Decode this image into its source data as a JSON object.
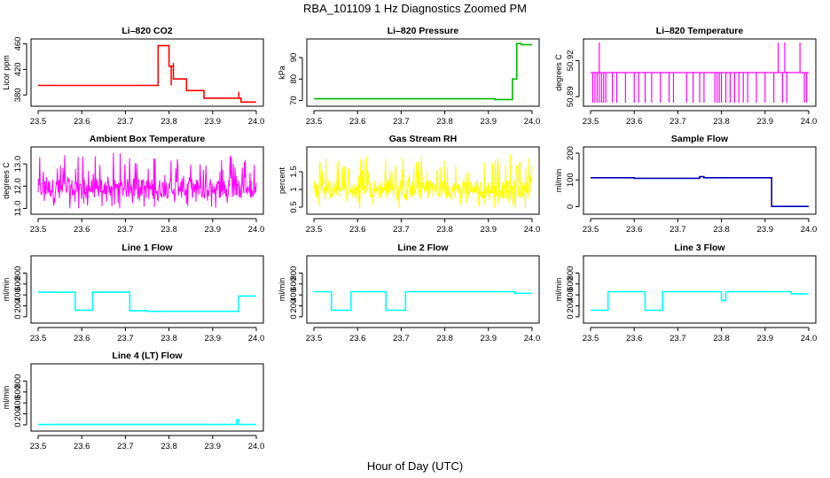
{
  "figure": {
    "title": "RBA_101109  1 Hz Diagnostics Zoomed PM",
    "xlabel": "Hour of Day (UTC)"
  },
  "chart_data": [
    {
      "id": "co2",
      "type": "line",
      "title": "Li–820 CO2",
      "ylabel": "Licor ppm",
      "color": "#ff0000",
      "xlim": [
        23.5,
        24.0
      ],
      "ylim": [
        368,
        462
      ],
      "x_ticks": [
        "23.5",
        "23.6",
        "23.7",
        "23.8",
        "23.9",
        "24.0"
      ],
      "y_ticks": [
        380,
        420,
        460
      ],
      "steps": [
        [
          23.5,
          23.775,
          395
        ],
        [
          23.775,
          23.8,
          457
        ],
        [
          23.8,
          23.81,
          425
        ],
        [
          23.81,
          23.84,
          405
        ],
        [
          23.84,
          23.88,
          387
        ],
        [
          23.88,
          23.965,
          375
        ],
        [
          23.965,
          24.0,
          369
        ]
      ],
      "spikes": [
        [
          23.805,
          395
        ],
        [
          23.81,
          430
        ],
        [
          23.96,
          385
        ]
      ]
    },
    {
      "id": "pressure",
      "type": "line",
      "title": "Li–820 Pressure",
      "ylabel": "kPa",
      "color": "#00bb00",
      "xlim": [
        23.5,
        24.0
      ],
      "ylim": [
        69,
        97
      ],
      "x_ticks": [
        "23.5",
        "23.6",
        "23.7",
        "23.8",
        "23.9",
        "24.0"
      ],
      "y_ticks": [
        70,
        80,
        90
      ],
      "steps": [
        [
          23.5,
          23.915,
          70.8
        ],
        [
          23.915,
          23.955,
          70.5
        ],
        [
          23.955,
          23.965,
          80
        ],
        [
          23.965,
          23.975,
          96.5
        ],
        [
          23.975,
          24.0,
          96
        ]
      ]
    },
    {
      "id": "li_temp",
      "type": "line",
      "title": "Li–820 Temperature",
      "ylabel": "degrees C",
      "color": "#ff00ff",
      "xlim": [
        23.5,
        24.0
      ],
      "ylim": [
        50.885,
        50.935
      ],
      "x_ticks": [
        "23.5",
        "23.6",
        "23.7",
        "23.8",
        "23.9",
        "24.0"
      ],
      "y_ticks": [
        50.89,
        50.92
      ],
      "base": 50.91,
      "low": 50.885,
      "high": 50.935,
      "down_spikes": [
        23.505,
        23.51,
        23.515,
        23.52,
        23.525,
        23.53,
        23.535,
        23.55,
        23.56,
        23.58,
        23.6,
        23.61,
        23.625,
        23.64,
        23.66,
        23.68,
        23.69,
        23.72,
        23.735,
        23.75,
        23.76,
        23.785,
        23.79,
        23.795,
        23.8,
        23.81,
        23.82,
        23.83,
        23.84,
        23.85,
        23.86,
        23.88,
        23.9,
        23.92,
        23.94,
        23.95,
        23.99,
        23.995
      ],
      "up_spikes": [
        23.52,
        23.93,
        23.945,
        23.98
      ]
    },
    {
      "id": "box_temp",
      "type": "line",
      "title": "Ambient Box Temperature",
      "ylabel": "degrees C",
      "color": "#ff00ff",
      "xlim": [
        23.5,
        24.0
      ],
      "ylim": [
        10.9,
        13.6
      ],
      "x_ticks": [
        "23.5",
        "23.6",
        "23.7",
        "23.8",
        "23.9",
        "24.0"
      ],
      "y_ticks": [
        11.0,
        12.0,
        13.0
      ],
      "mean": 11.9,
      "low": 11.0,
      "high": 13.5
    },
    {
      "id": "rh",
      "type": "line",
      "title": "Gas Stream RH",
      "ylabel": "percent",
      "color": "#ffff00",
      "xlim": [
        23.5,
        24.0
      ],
      "ylim": [
        0.4,
        2.1
      ],
      "x_ticks": [
        "23.5",
        "23.6",
        "23.7",
        "23.8",
        "23.9",
        "24.0"
      ],
      "y_ticks": [
        0.5,
        1.0,
        1.5
      ],
      "mean": 1.0,
      "low": 0.45,
      "high": 2.0
    },
    {
      "id": "sample_flow",
      "type": "line",
      "title": "Sample Flow",
      "ylabel": "ml/min",
      "color": "#0000bb",
      "xlim": [
        23.5,
        24.0
      ],
      "ylim": [
        -15,
        210
      ],
      "x_ticks": [
        "23.5",
        "23.6",
        "23.7",
        "23.8",
        "23.9",
        "24.0"
      ],
      "y_ticks": [
        0,
        100,
        200
      ],
      "steps": [
        [
          23.5,
          23.6,
          108
        ],
        [
          23.6,
          23.75,
          106
        ],
        [
          23.75,
          23.76,
          112
        ],
        [
          23.76,
          23.915,
          108
        ],
        [
          23.915,
          24.0,
          1
        ]
      ]
    },
    {
      "id": "line1",
      "type": "line",
      "title": "Line 1 Flow",
      "ylabel": "ml/min",
      "color": "#00ffff",
      "xlim": [
        23.5,
        24.0
      ],
      "ylim": [
        -50,
        1050
      ],
      "x_ticks": [
        "23.5",
        "23.6",
        "23.7",
        "23.8",
        "23.9",
        "24.0"
      ],
      "y_ticks": [
        0,
        200,
        400,
        600,
        800
      ],
      "steps": [
        [
          23.5,
          23.585,
          450
        ],
        [
          23.585,
          23.625,
          120
        ],
        [
          23.625,
          23.71,
          450
        ],
        [
          23.71,
          23.75,
          110
        ],
        [
          23.75,
          23.96,
          100
        ],
        [
          23.96,
          24.0,
          380
        ]
      ]
    },
    {
      "id": "line2",
      "type": "line",
      "title": "Line 2 Flow",
      "ylabel": "ml/min",
      "color": "#00ffff",
      "xlim": [
        23.5,
        24.0
      ],
      "ylim": [
        -50,
        1050
      ],
      "x_ticks": [
        "23.5",
        "23.6",
        "23.7",
        "23.8",
        "23.9",
        "24.0"
      ],
      "y_ticks": [
        0,
        200,
        400,
        600,
        800
      ],
      "steps": [
        [
          23.5,
          23.54,
          460
        ],
        [
          23.54,
          23.585,
          120
        ],
        [
          23.585,
          23.665,
          460
        ],
        [
          23.665,
          23.71,
          120
        ],
        [
          23.71,
          23.96,
          460
        ],
        [
          23.96,
          24.0,
          430
        ]
      ]
    },
    {
      "id": "line3",
      "type": "line",
      "title": "Line 3 Flow",
      "ylabel": "ml/min",
      "color": "#00ffff",
      "xlim": [
        23.5,
        24.0
      ],
      "ylim": [
        -50,
        1050
      ],
      "x_ticks": [
        "23.5",
        "23.6",
        "23.7",
        "23.8",
        "23.9",
        "24.0"
      ],
      "y_ticks": [
        0,
        200,
        400,
        600,
        800
      ],
      "steps": [
        [
          23.5,
          23.54,
          120
        ],
        [
          23.54,
          23.625,
          460
        ],
        [
          23.625,
          23.665,
          120
        ],
        [
          23.665,
          23.8,
          460
        ],
        [
          23.8,
          23.81,
          300
        ],
        [
          23.81,
          23.96,
          460
        ],
        [
          23.96,
          24.0,
          420
        ]
      ]
    },
    {
      "id": "line4",
      "type": "line",
      "title": "Line 4 (LT) Flow",
      "ylabel": "ml/min",
      "color": "#00ffff",
      "xlim": [
        23.5,
        24.0
      ],
      "ylim": [
        -50,
        1050
      ],
      "x_ticks": [
        "23.5",
        "23.6",
        "23.7",
        "23.8",
        "23.9",
        "24.0"
      ],
      "y_ticks": [
        0,
        200,
        400,
        600,
        800
      ],
      "steps": [
        [
          23.5,
          23.955,
          5
        ],
        [
          23.955,
          23.96,
          90
        ],
        [
          23.96,
          24.0,
          5
        ]
      ]
    }
  ]
}
